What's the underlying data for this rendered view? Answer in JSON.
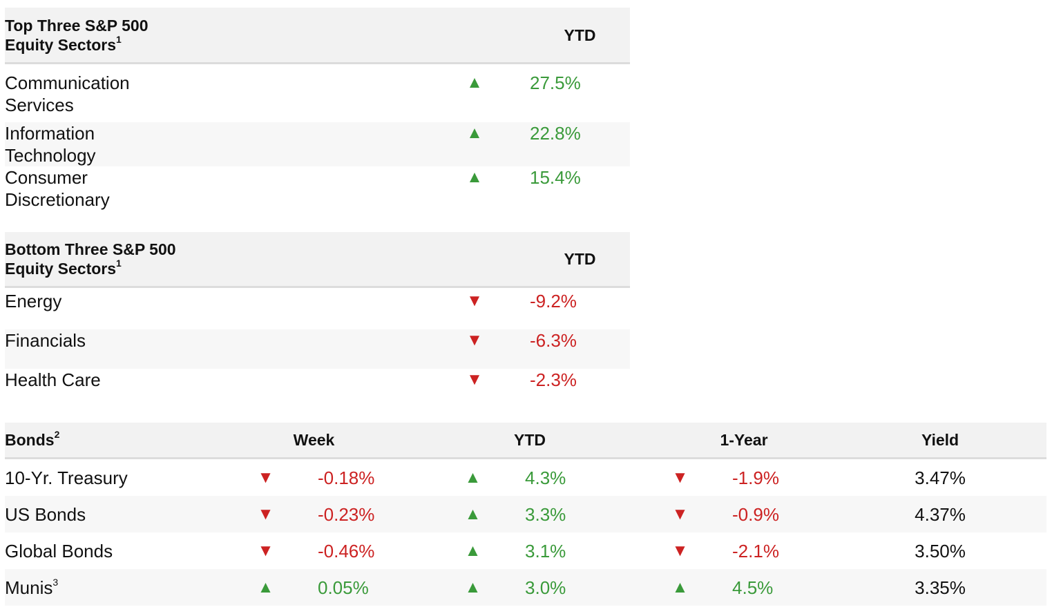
{
  "top_sectors": {
    "title": "Top Three S&P 500 Equity Sectors",
    "footnote": "1",
    "col_ytd": "YTD",
    "rows": [
      {
        "name": "Communication Services",
        "direction": "up",
        "ytd": "27.5%"
      },
      {
        "name": "Information Technology",
        "direction": "up",
        "ytd": "22.8%"
      },
      {
        "name": "Consumer Discretionary",
        "direction": "up",
        "ytd": "15.4%"
      }
    ]
  },
  "bottom_sectors": {
    "title": "Bottom Three S&P 500 Equity Sectors",
    "footnote": "1",
    "col_ytd": "YTD",
    "rows": [
      {
        "name": "Energy",
        "direction": "down",
        "ytd": "-9.2%"
      },
      {
        "name": "Financials",
        "direction": "down",
        "ytd": "-6.3%"
      },
      {
        "name": "Health Care",
        "direction": "down",
        "ytd": "-2.3%"
      }
    ]
  },
  "bonds": {
    "title": "Bonds",
    "footnote": "2",
    "col_week": "Week",
    "col_ytd": "YTD",
    "col_1yr": "1-Year",
    "col_yield": "Yield",
    "rows": [
      {
        "name": "10-Yr. Treasury",
        "footnote": "",
        "week_dir": "down",
        "week": "-0.18%",
        "ytd_dir": "up",
        "ytd": "4.3%",
        "yr_dir": "down",
        "yr": "-1.9%",
        "yield": "3.47%"
      },
      {
        "name": "US Bonds",
        "footnote": "",
        "week_dir": "down",
        "week": "-0.23%",
        "ytd_dir": "up",
        "ytd": "3.3%",
        "yr_dir": "down",
        "yr": "-0.9%",
        "yield": "4.37%"
      },
      {
        "name": "Global Bonds",
        "footnote": "",
        "week_dir": "down",
        "week": "-0.46%",
        "ytd_dir": "up",
        "ytd": "3.1%",
        "yr_dir": "down",
        "yr": "-2.1%",
        "yield": "3.50%"
      },
      {
        "name": "Munis",
        "footnote": "3",
        "week_dir": "up",
        "week": "0.05%",
        "ytd_dir": "up",
        "ytd": "3.0%",
        "yr_dir": "up",
        "yr": "4.5%",
        "yield": "3.35%"
      }
    ]
  },
  "icons": {
    "up": "triangle-up-icon",
    "down": "triangle-down-icon"
  },
  "colors": {
    "up": "#3a9a3a",
    "down": "#cc2222",
    "header_bg": "#f2f2f2",
    "alt_row_bg": "#f7f7f7"
  }
}
